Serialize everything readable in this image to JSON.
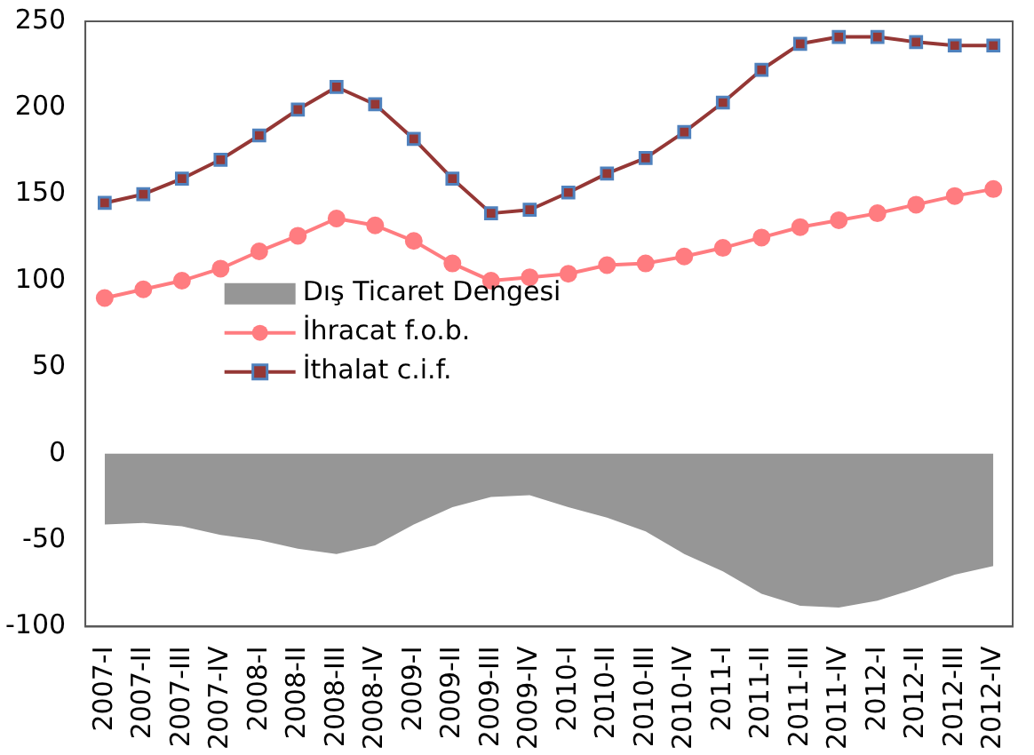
{
  "chart_data": {
    "type": "line",
    "categories": [
      "2007-I",
      "2007-II",
      "2007-III",
      "2007-IV",
      "2008-I",
      "2008-II",
      "2008-III",
      "2008-IV",
      "2009-I",
      "2009-II",
      "2009-III",
      "2009-IV",
      "2010-I",
      "2010-II",
      "2010-III",
      "2010-IV",
      "2011-I",
      "2011-II",
      "2011-III",
      "2011-IV",
      "2012-I",
      "2012-II",
      "2012-III",
      "2012-IV"
    ],
    "series": [
      {
        "name": "Dış Ticaret Dengesi",
        "type": "area",
        "color": "#969696",
        "marker": "none",
        "values": [
          -41,
          -40,
          -42,
          -47,
          -50,
          -55,
          -58,
          -53,
          -41,
          -31,
          -25,
          -24,
          -31,
          -37,
          -45,
          -58,
          -68,
          -81,
          -88,
          -89,
          -85,
          -78,
          -70,
          -65
        ]
      },
      {
        "name": "İhracat f.o.b.",
        "color": "#ff7c80",
        "marker": "circle",
        "values": [
          90,
          95,
          100,
          107,
          117,
          126,
          136,
          132,
          123,
          110,
          100,
          102,
          104,
          109,
          110,
          114,
          119,
          125,
          131,
          135,
          139,
          144,
          149,
          153
        ]
      },
      {
        "name": "İthalat c.i.f.",
        "color": "#953735",
        "marker": "square",
        "values": [
          145,
          150,
          159,
          170,
          184,
          199,
          212,
          202,
          182,
          159,
          139,
          141,
          151,
          162,
          171,
          186,
          203,
          222,
          237,
          241,
          241,
          238,
          236,
          236
        ]
      }
    ],
    "ylim": [
      -100,
      250
    ],
    "yticks": [
      -100,
      -50,
      0,
      50,
      100,
      150,
      200,
      250
    ],
    "grid": false,
    "legend": "center left"
  }
}
